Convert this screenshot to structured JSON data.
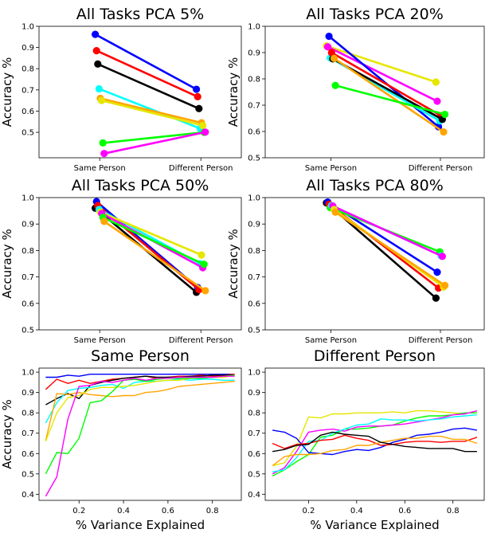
{
  "chart_data": [
    {
      "type": "line",
      "title": "All Tasks PCA 5%",
      "ylabel": "Accuracy %",
      "xlabel": "",
      "categories": [
        "Same Person",
        "Different Person"
      ],
      "ylim": [
        0.38,
        1.0
      ],
      "yticks": [
        0.5,
        0.6,
        0.7,
        0.8,
        0.9,
        1.0
      ],
      "yticklabels": [
        "0.5",
        "0.6",
        "0.7",
        "0.8",
        "0.9",
        "1.0"
      ],
      "markers": true,
      "series": [
        {
          "color": "#0000ff",
          "values": [
            0.962,
            0.703
          ]
        },
        {
          "color": "#ff0000",
          "values": [
            0.885,
            0.668
          ]
        },
        {
          "color": "#000000",
          "values": [
            0.822,
            0.612
          ]
        },
        {
          "color": "#00ffff",
          "values": [
            0.705,
            0.518
          ]
        },
        {
          "color": "#ffa500",
          "values": [
            0.66,
            0.545
          ]
        },
        {
          "color": "#e6e600",
          "values": [
            0.65,
            0.532
          ]
        },
        {
          "color": "#00ff00",
          "values": [
            0.45,
            0.5
          ]
        },
        {
          "color": "#ff00ff",
          "values": [
            0.4,
            0.501
          ]
        }
      ]
    },
    {
      "type": "line",
      "title": "All Tasks PCA 20%",
      "ylabel": "Accuracy %",
      "xlabel": "",
      "categories": [
        "Same Person",
        "Different Person"
      ],
      "ylim": [
        0.5,
        1.0
      ],
      "yticks": [
        0.5,
        0.6,
        0.7,
        0.8,
        0.9,
        1.0
      ],
      "yticklabels": [
        "0.5",
        "0.6",
        "0.7",
        "0.8",
        "0.9",
        "1.0"
      ],
      "markers": true,
      "series": [
        {
          "color": "#e6e600",
          "values": [
            0.925,
            0.788
          ]
        },
        {
          "color": "#ff00ff",
          "values": [
            0.922,
            0.715
          ]
        },
        {
          "color": "#0000ff",
          "values": [
            0.962,
            0.618
          ]
        },
        {
          "color": "#00ffff",
          "values": [
            0.88,
            0.64
          ]
        },
        {
          "color": "#ff0000",
          "values": [
            0.9,
            0.66
          ]
        },
        {
          "color": "#000000",
          "values": [
            0.876,
            0.646
          ]
        },
        {
          "color": "#ffa500",
          "values": [
            0.878,
            0.598
          ]
        },
        {
          "color": "#00ff00",
          "values": [
            0.775,
            0.665
          ]
        }
      ]
    },
    {
      "type": "line",
      "title": "All Tasks PCA 50%",
      "ylabel": "Accuracy %",
      "xlabel": "",
      "categories": [
        "Same Person",
        "Different Person"
      ],
      "ylim": [
        0.5,
        1.0
      ],
      "yticks": [
        0.5,
        0.6,
        0.7,
        0.8,
        0.9,
        1.0
      ],
      "yticklabels": [
        "0.5",
        "0.6",
        "0.7",
        "0.8",
        "0.9",
        "1.0"
      ],
      "markers": true,
      "series": [
        {
          "color": "#000000",
          "values": [
            0.96,
            0.642
          ]
        },
        {
          "color": "#0000ff",
          "values": [
            0.985,
            0.66
          ]
        },
        {
          "color": "#ff0000",
          "values": [
            0.97,
            0.652
          ]
        },
        {
          "color": "#00ffff",
          "values": [
            0.955,
            0.75
          ]
        },
        {
          "color": "#e6e600",
          "values": [
            0.945,
            0.783
          ]
        },
        {
          "color": "#ff00ff",
          "values": [
            0.94,
            0.735
          ]
        },
        {
          "color": "#00ff00",
          "values": [
            0.925,
            0.748
          ]
        },
        {
          "color": "#ffa500",
          "values": [
            0.91,
            0.648
          ]
        }
      ]
    },
    {
      "type": "line",
      "title": "All Tasks PCA 80%",
      "ylabel": "Accuracy %",
      "xlabel": "",
      "categories": [
        "Same Person",
        "Different Person"
      ],
      "ylim": [
        0.5,
        1.0
      ],
      "yticks": [
        0.5,
        0.6,
        0.7,
        0.8,
        0.9,
        1.0
      ],
      "yticklabels": [
        "0.5",
        "0.6",
        "0.7",
        "0.8",
        "0.9",
        "1.0"
      ],
      "markers": true,
      "series": [
        {
          "color": "#000000",
          "values": [
            0.98,
            0.62
          ]
        },
        {
          "color": "#0000ff",
          "values": [
            0.983,
            0.718
          ]
        },
        {
          "color": "#ff0000",
          "values": [
            0.975,
            0.658
          ]
        },
        {
          "color": "#00ff00",
          "values": [
            0.962,
            0.795
          ]
        },
        {
          "color": "#00ffff",
          "values": [
            0.97,
            0.78
          ]
        },
        {
          "color": "#ff00ff",
          "values": [
            0.968,
            0.778
          ]
        },
        {
          "color": "#e6e600",
          "values": [
            0.955,
            0.662
          ]
        },
        {
          "color": "#ffa500",
          "values": [
            0.945,
            0.668
          ]
        }
      ]
    },
    {
      "type": "line",
      "title": "Same Person",
      "ylabel": "Accuracy %",
      "xlabel": "% Variance Explained",
      "xlim": [
        0.02,
        0.93
      ],
      "ylim": [
        0.37,
        1.02
      ],
      "xticks": [
        0.2,
        0.4,
        0.6,
        0.8
      ],
      "xticklabels": [
        "0.2",
        "0.4",
        "0.6",
        "0.8"
      ],
      "yticks": [
        0.4,
        0.5,
        0.6,
        0.7,
        0.8,
        0.9,
        1.0
      ],
      "yticklabels": [
        "0.4",
        "0.5",
        "0.6",
        "0.7",
        "0.8",
        "0.9",
        "1.0"
      ],
      "markers": false,
      "x": [
        0.05,
        0.1,
        0.15,
        0.2,
        0.25,
        0.3,
        0.35,
        0.4,
        0.45,
        0.5,
        0.55,
        0.6,
        0.65,
        0.7,
        0.75,
        0.8,
        0.85,
        0.9
      ],
      "series": [
        {
          "color": "#0000ff",
          "values": [
            0.975,
            0.975,
            0.985,
            0.98,
            0.99,
            0.99,
            0.99,
            0.99,
            0.99,
            0.99,
            0.99,
            0.99,
            0.99,
            0.99,
            0.99,
            0.99,
            0.99,
            0.99
          ]
        },
        {
          "color": "#ff0000",
          "values": [
            0.915,
            0.965,
            0.945,
            0.96,
            0.945,
            0.955,
            0.965,
            0.97,
            0.975,
            0.98,
            0.97,
            0.975,
            0.98,
            0.98,
            0.985,
            0.98,
            0.985,
            0.99
          ]
        },
        {
          "color": "#000000",
          "values": [
            0.84,
            0.87,
            0.895,
            0.87,
            0.935,
            0.95,
            0.96,
            0.97,
            0.975,
            0.98,
            0.975,
            0.975,
            0.975,
            0.98,
            0.98,
            0.985,
            0.985,
            0.985
          ]
        },
        {
          "color": "#00ffff",
          "values": [
            0.75,
            0.85,
            0.91,
            0.92,
            0.925,
            0.935,
            0.94,
            0.92,
            0.95,
            0.955,
            0.955,
            0.96,
            0.965,
            0.96,
            0.965,
            0.965,
            0.96,
            0.96
          ]
        },
        {
          "color": "#ffa500",
          "values": [
            0.665,
            0.895,
            0.89,
            0.9,
            0.89,
            0.885,
            0.88,
            0.885,
            0.885,
            0.9,
            0.905,
            0.915,
            0.93,
            0.935,
            0.94,
            0.945,
            0.95,
            0.955
          ]
        },
        {
          "color": "#e6e600",
          "values": [
            0.66,
            0.8,
            0.875,
            0.885,
            0.915,
            0.925,
            0.925,
            0.93,
            0.935,
            0.945,
            0.955,
            0.96,
            0.96,
            0.97,
            0.975,
            0.975,
            0.975,
            0.985
          ]
        },
        {
          "color": "#00ff00",
          "values": [
            0.5,
            0.605,
            0.6,
            0.675,
            0.85,
            0.86,
            0.905,
            0.96,
            0.965,
            0.955,
            0.965,
            0.97,
            0.97,
            0.97,
            0.97,
            0.975,
            0.98,
            0.985
          ]
        },
        {
          "color": "#ff00ff",
          "values": [
            0.39,
            0.485,
            0.77,
            0.93,
            0.935,
            0.955,
            0.95,
            0.96,
            0.97,
            0.96,
            0.97,
            0.97,
            0.975,
            0.975,
            0.975,
            0.975,
            0.98,
            0.98
          ]
        }
      ]
    },
    {
      "type": "line",
      "title": "Different Person",
      "ylabel": "",
      "xlabel": "% Variance Explained",
      "xlim": [
        0.02,
        0.93
      ],
      "ylim": [
        0.37,
        1.02
      ],
      "xticks": [
        0.2,
        0.4,
        0.6,
        0.8
      ],
      "xticklabels": [
        "0.2",
        "0.4",
        "0.6",
        "0.8"
      ],
      "yticks": [
        0.4,
        0.5,
        0.6,
        0.7,
        0.8,
        0.9,
        1.0
      ],
      "yticklabels": [
        "0.4",
        "0.5",
        "0.6",
        "0.7",
        "0.8",
        "0.9",
        "1.0"
      ],
      "markers": false,
      "x": [
        0.05,
        0.1,
        0.15,
        0.2,
        0.25,
        0.3,
        0.35,
        0.4,
        0.45,
        0.5,
        0.55,
        0.6,
        0.65,
        0.7,
        0.75,
        0.8,
        0.85,
        0.9
      ],
      "series": [
        {
          "color": "#e6e600",
          "values": [
            0.54,
            0.555,
            0.635,
            0.78,
            0.775,
            0.795,
            0.795,
            0.8,
            0.8,
            0.8,
            0.805,
            0.8,
            0.81,
            0.81,
            0.805,
            0.8,
            0.795,
            0.81
          ]
        },
        {
          "color": "#00ff00",
          "values": [
            0.49,
            0.52,
            0.56,
            0.595,
            0.68,
            0.69,
            0.72,
            0.72,
            0.725,
            0.735,
            0.74,
            0.76,
            0.775,
            0.785,
            0.785,
            0.79,
            0.8,
            0.8
          ]
        },
        {
          "color": "#ff00ff",
          "values": [
            0.5,
            0.53,
            0.61,
            0.705,
            0.715,
            0.72,
            0.71,
            0.73,
            0.735,
            0.735,
            0.74,
            0.745,
            0.755,
            0.765,
            0.775,
            0.79,
            0.795,
            0.81
          ]
        },
        {
          "color": "#00ffff",
          "values": [
            0.51,
            0.52,
            0.58,
            0.66,
            0.665,
            0.7,
            0.72,
            0.74,
            0.745,
            0.77,
            0.765,
            0.765,
            0.76,
            0.765,
            0.77,
            0.78,
            0.785,
            0.79
          ]
        },
        {
          "color": "#0000ff",
          "values": [
            0.715,
            0.705,
            0.675,
            0.605,
            0.6,
            0.595,
            0.61,
            0.62,
            0.615,
            0.63,
            0.655,
            0.67,
            0.69,
            0.695,
            0.705,
            0.72,
            0.725,
            0.715
          ]
        },
        {
          "color": "#ff0000",
          "values": [
            0.65,
            0.625,
            0.645,
            0.65,
            0.665,
            0.67,
            0.69,
            0.675,
            0.665,
            0.64,
            0.645,
            0.655,
            0.66,
            0.66,
            0.655,
            0.66,
            0.66,
            0.68
          ]
        },
        {
          "color": "#ffa500",
          "values": [
            0.54,
            0.585,
            0.595,
            0.595,
            0.6,
            0.615,
            0.62,
            0.64,
            0.64,
            0.655,
            0.665,
            0.675,
            0.675,
            0.685,
            0.685,
            0.67,
            0.67,
            0.65
          ]
        },
        {
          "color": "#000000",
          "values": [
            0.61,
            0.62,
            0.64,
            0.645,
            0.69,
            0.705,
            0.695,
            0.69,
            0.685,
            0.655,
            0.645,
            0.635,
            0.63,
            0.625,
            0.625,
            0.625,
            0.61,
            0.61
          ]
        }
      ]
    }
  ]
}
